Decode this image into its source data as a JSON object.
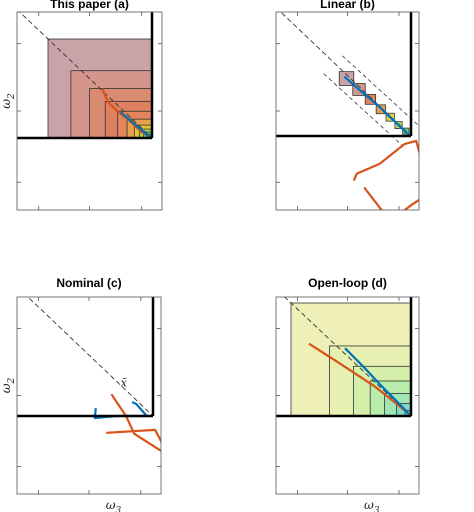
{
  "chart_data": [
    {
      "type": "line",
      "title": "This paper (a)",
      "ylabel": "ω2",
      "xlabel": "",
      "grid": false,
      "legend": "none",
      "boxes": [
        {
          "corner": [
            -1.0,
            1.0
          ],
          "color": "#c9a3a8"
        },
        {
          "corner": [
            -0.78,
            0.68
          ],
          "color": "#d4968c"
        },
        {
          "corner": [
            -0.6,
            0.5
          ],
          "color": "#da8a70"
        },
        {
          "corner": [
            -0.45,
            0.37
          ],
          "color": "#de8060"
        },
        {
          "corner": [
            -0.33,
            0.27
          ],
          "color": "#e3845a"
        },
        {
          "corner": [
            -0.24,
            0.19
          ],
          "color": "#e8a04a"
        },
        {
          "corner": [
            -0.17,
            0.13
          ],
          "color": "#e5c23c"
        },
        {
          "corner": [
            -0.12,
            0.09
          ],
          "color": "#b7d54a"
        },
        {
          "corner": [
            -0.08,
            0.06
          ],
          "color": "#6fcf6a"
        },
        {
          "corner": [
            -0.05,
            0.035
          ],
          "color": "#46c49a"
        }
      ],
      "series": [
        {
          "color": "#d95319",
          "points": [
            [
              -0.48,
              0.5
            ],
            [
              -0.42,
              0.36
            ],
            [
              -0.33,
              0.27
            ],
            [
              -0.2,
              0.16
            ],
            [
              -0.1,
              0.06
            ],
            [
              -0.02,
              0.01
            ]
          ]
        },
        {
          "color": "#0072bd",
          "points": [
            [
              -0.3,
              0.26
            ],
            [
              -0.2,
              0.17
            ],
            [
              -0.1,
              0.08
            ],
            [
              -0.02,
              0.01
            ]
          ]
        }
      ]
    },
    {
      "type": "line",
      "title": "Linear (b)",
      "ylabel": "",
      "xlabel": "",
      "grid": false,
      "legend": "none",
      "boxes": [
        {
          "center": [
            -0.62,
            0.58
          ],
          "half": [
            0.07,
            0.07
          ],
          "color": "#c9a3a8"
        },
        {
          "center": [
            -0.5,
            0.47
          ],
          "half": [
            0.06,
            0.06
          ],
          "color": "#d4968c"
        },
        {
          "center": [
            -0.39,
            0.37
          ],
          "half": [
            0.05,
            0.05
          ],
          "color": "#e3845a"
        },
        {
          "center": [
            -0.29,
            0.27
          ],
          "half": [
            0.045,
            0.045
          ],
          "color": "#e8a04a"
        },
        {
          "center": [
            -0.2,
            0.19
          ],
          "half": [
            0.04,
            0.04
          ],
          "color": "#e5d24c"
        },
        {
          "center": [
            -0.12,
            0.11
          ],
          "half": [
            0.035,
            0.035
          ],
          "color": "#b7d54a"
        },
        {
          "center": [
            -0.05,
            0.05
          ],
          "half": [
            0.03,
            0.03
          ],
          "color": "#6fcf6a"
        }
      ],
      "series": [
        {
          "color": "#d95319",
          "points": [
            [
              -0.55,
              -0.45
            ],
            [
              -0.52,
              -0.38
            ],
            [
              -0.3,
              -0.28
            ],
            [
              -0.06,
              -0.08
            ],
            [
              0.05,
              -0.05
            ],
            [
              0.13,
              -0.35
            ],
            [
              0.2,
              -0.62
            ],
            [
              0.17,
              -0.58
            ],
            [
              0.0,
              -0.7
            ],
            [
              -0.2,
              -0.86
            ],
            [
              -0.45,
              -0.52
            ]
          ]
        },
        {
          "color": "#0072bd",
          "points": [
            [
              -0.64,
              0.6
            ],
            [
              -0.5,
              0.47
            ],
            [
              -0.32,
              0.31
            ],
            [
              -0.14,
              0.13
            ],
            [
              -0.03,
              0.02
            ],
            [
              0.0,
              0.0
            ]
          ]
        }
      ]
    },
    {
      "type": "line",
      "title": "Nominal (c)",
      "ylabel": "ω2",
      "xlabel": "ω3",
      "grid": false,
      "legend": "none",
      "annotation": "x̄",
      "series": [
        {
          "color": "#d95319",
          "points": [
            [
              -0.4,
              0.22
            ],
            [
              -0.26,
              0.0
            ],
            [
              -0.18,
              -0.18
            ],
            [
              0.15,
              -0.4
            ],
            [
              0.02,
              -0.14
            ],
            [
              -0.45,
              -0.17
            ]
          ]
        },
        {
          "color": "#0072bd",
          "points": [
            [
              -0.55,
              0.08
            ],
            [
              -0.56,
              -0.02
            ],
            [
              -0.35,
              0.0
            ],
            [
              -0.24,
              0.0
            ],
            [
              -0.06,
              0.0
            ],
            [
              -0.16,
              0.12
            ],
            [
              -0.2,
              0.14
            ]
          ]
        }
      ]
    },
    {
      "type": "line",
      "title": "Open-loop (d)",
      "ylabel": "",
      "xlabel": "ω3",
      "grid": false,
      "legend": "none",
      "boxes": [
        {
          "corner": [
            -1.0,
            1.0
          ],
          "color": "#eef0b8"
        },
        {
          "corner": [
            -0.68,
            0.62
          ],
          "color": "#e7f0b0"
        },
        {
          "corner": [
            -0.48,
            0.44
          ],
          "color": "#d3efaa"
        },
        {
          "corner": [
            -0.34,
            0.31
          ],
          "color": "#b8ecab"
        },
        {
          "corner": [
            -0.22,
            0.2
          ],
          "color": "#9fe6b7"
        },
        {
          "corner": [
            -0.12,
            0.11
          ],
          "color": "#7edbc5"
        },
        {
          "corner": [
            -0.05,
            0.05
          ],
          "color": "#5ccfcf"
        }
      ],
      "series": [
        {
          "color": "#d95319",
          "points": [
            [
              -0.85,
              0.64
            ],
            [
              -0.6,
              0.47
            ],
            [
              -0.3,
              0.26
            ],
            [
              -0.1,
              0.09
            ],
            [
              -0.02,
              0.02
            ]
          ]
        },
        {
          "color": "#0072bd",
          "points": [
            [
              -0.55,
              0.6
            ],
            [
              -0.4,
              0.44
            ],
            [
              -0.25,
              0.27
            ],
            [
              -0.1,
              0.11
            ],
            [
              -0.02,
              0.02
            ]
          ]
        }
      ]
    }
  ]
}
